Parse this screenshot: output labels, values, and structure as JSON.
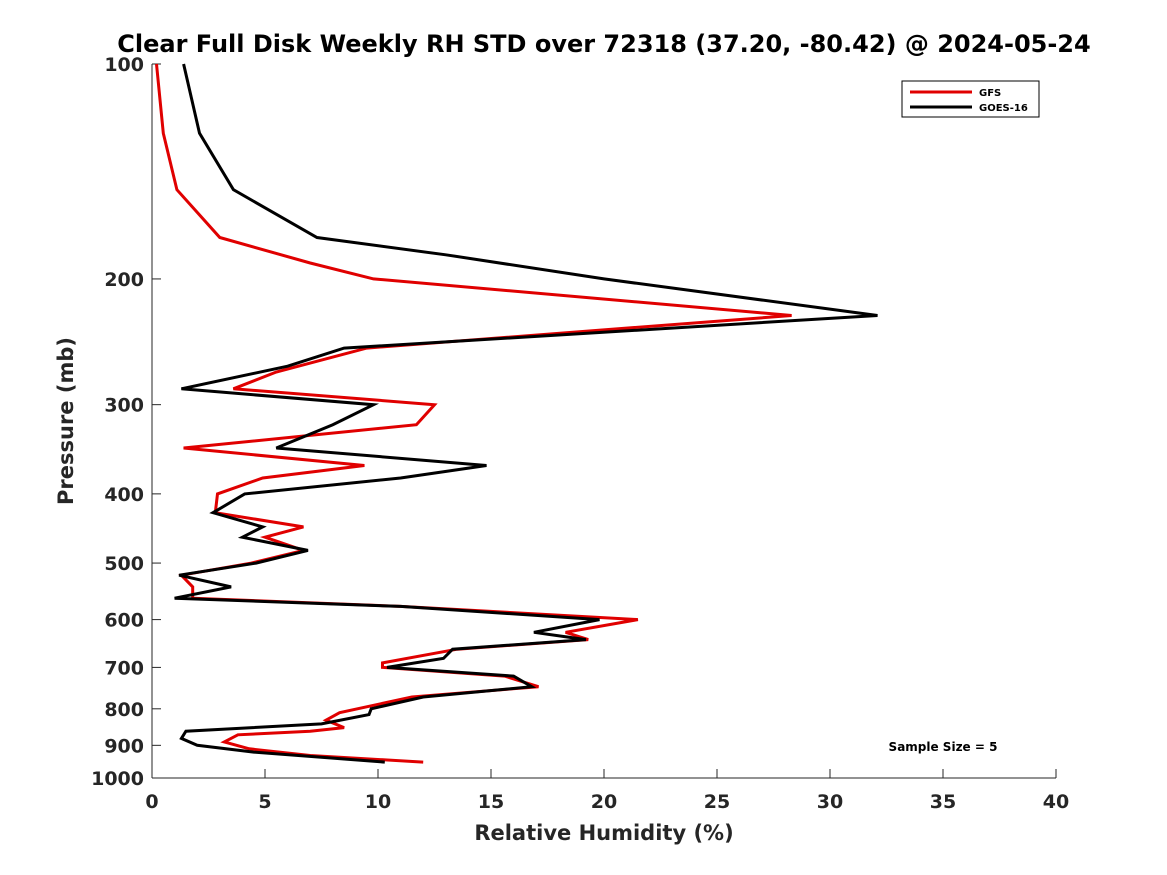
{
  "chart_data": {
    "type": "line",
    "title": "Clear Full Disk Weekly RH STD over 72318 (37.20, -80.42) @ 2024-05-24",
    "xlabel": "Relative Humidity (%)",
    "ylabel": "Pressure (mb)",
    "xlim": [
      0,
      40
    ],
    "ylim": [
      100,
      1000
    ],
    "y_scale": "log",
    "y_direction": "reversed",
    "xticks": [
      0,
      5,
      10,
      15,
      20,
      25,
      30,
      35,
      40
    ],
    "yticks": [
      100,
      200,
      300,
      400,
      500,
      600,
      700,
      800,
      900,
      1000
    ],
    "grid": false,
    "legend_position": "top-right",
    "annotation": "Sample Size = 5",
    "series": [
      {
        "name": "GFS",
        "color": "#e00000",
        "points": [
          [
            0.2,
            100
          ],
          [
            0.5,
            125
          ],
          [
            1.1,
            150
          ],
          [
            3.0,
            175
          ],
          [
            7.0,
            190
          ],
          [
            9.8,
            200
          ],
          [
            28.3,
            225
          ],
          [
            9.5,
            250
          ],
          [
            5.5,
            270
          ],
          [
            3.6,
            285
          ],
          [
            12.5,
            300
          ],
          [
            11.7,
            320
          ],
          [
            1.4,
            345
          ],
          [
            9.4,
            365
          ],
          [
            4.9,
            380
          ],
          [
            2.9,
            400
          ],
          [
            2.8,
            425
          ],
          [
            6.7,
            445
          ],
          [
            5.0,
            460
          ],
          [
            6.7,
            480
          ],
          [
            4.4,
            500
          ],
          [
            1.3,
            520
          ],
          [
            1.8,
            540
          ],
          [
            1.8,
            560
          ],
          [
            11.0,
            575
          ],
          [
            21.5,
            600
          ],
          [
            18.3,
            625
          ],
          [
            19.3,
            640
          ],
          [
            13.5,
            660
          ],
          [
            10.2,
            690
          ],
          [
            10.2,
            700
          ],
          [
            15.6,
            720
          ],
          [
            17.1,
            745
          ],
          [
            11.5,
            770
          ],
          [
            8.3,
            810
          ],
          [
            7.7,
            830
          ],
          [
            8.5,
            850
          ],
          [
            7.0,
            860
          ],
          [
            3.8,
            870
          ],
          [
            3.2,
            890
          ],
          [
            4.3,
            910
          ],
          [
            7.0,
            930
          ],
          [
            12.0,
            950
          ]
        ]
      },
      {
        "name": "GOES-16",
        "color": "#000000",
        "points": [
          [
            1.4,
            100
          ],
          [
            2.1,
            125
          ],
          [
            3.6,
            150
          ],
          [
            7.3,
            175
          ],
          [
            13.0,
            185
          ],
          [
            20.0,
            200
          ],
          [
            32.1,
            225
          ],
          [
            8.5,
            250
          ],
          [
            6.0,
            265
          ],
          [
            1.3,
            285
          ],
          [
            9.8,
            300
          ],
          [
            8.0,
            320
          ],
          [
            5.5,
            345
          ],
          [
            14.8,
            365
          ],
          [
            11.0,
            380
          ],
          [
            4.1,
            400
          ],
          [
            2.7,
            425
          ],
          [
            4.9,
            445
          ],
          [
            4.0,
            460
          ],
          [
            6.9,
            480
          ],
          [
            4.6,
            500
          ],
          [
            1.2,
            520
          ],
          [
            3.5,
            540
          ],
          [
            1.0,
            560
          ],
          [
            11.0,
            575
          ],
          [
            19.8,
            600
          ],
          [
            16.9,
            625
          ],
          [
            19.2,
            640
          ],
          [
            13.3,
            660
          ],
          [
            12.9,
            680
          ],
          [
            10.4,
            700
          ],
          [
            16.0,
            720
          ],
          [
            16.8,
            745
          ],
          [
            12.0,
            770
          ],
          [
            9.7,
            800
          ],
          [
            9.6,
            815
          ],
          [
            7.5,
            840
          ],
          [
            1.5,
            860
          ],
          [
            1.3,
            880
          ],
          [
            2.0,
            900
          ],
          [
            4.5,
            920
          ],
          [
            10.3,
            950
          ]
        ]
      }
    ]
  }
}
